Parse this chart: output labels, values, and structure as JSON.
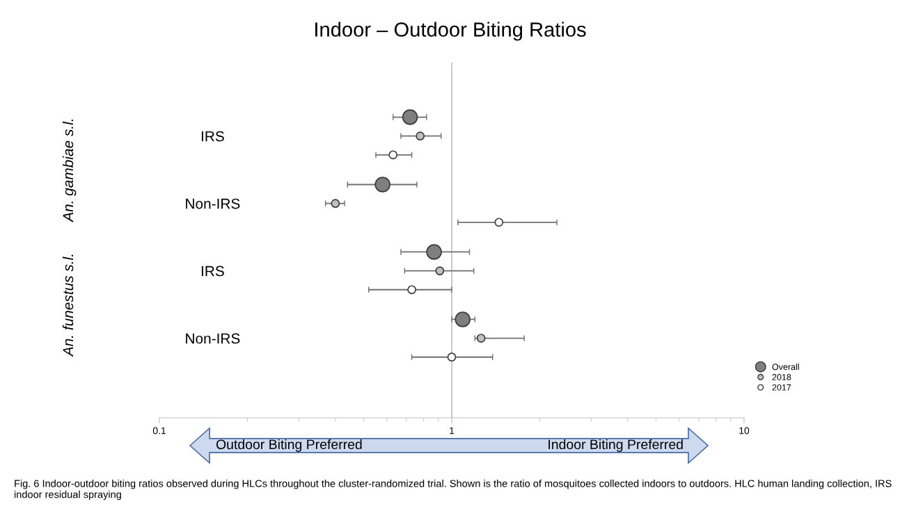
{
  "chart_data": {
    "type": "scatter",
    "orientation": "horizontal",
    "title": "Indoor – Outdoor Biting Ratios",
    "categories": [
      "IRS",
      "Non-IRS",
      "IRS",
      "Non-IRS"
    ],
    "series": [
      {
        "name": "Overall",
        "color": "#7f7f7f",
        "values": [
          0.72,
          0.58,
          0.87,
          1.09
        ],
        "errors": [
          [
            0.63,
            0.82
          ],
          [
            0.44,
            0.76
          ],
          [
            0.67,
            1.15
          ],
          [
            1.0,
            1.2
          ]
        ]
      },
      {
        "name": "2018",
        "color": "#bfbfbf",
        "values": [
          0.78,
          0.4,
          0.91,
          1.26
        ],
        "errors": [
          [
            0.67,
            0.92
          ],
          [
            0.37,
            0.43
          ],
          [
            0.69,
            1.19
          ],
          [
            1.2,
            1.77
          ]
        ]
      },
      {
        "name": "2017",
        "color": "#ffffff",
        "values": [
          0.63,
          1.45,
          0.73,
          1.0
        ],
        "errors": [
          [
            0.55,
            0.73
          ],
          [
            1.05,
            2.29
          ],
          [
            0.52,
            1.0
          ],
          [
            0.73,
            1.38
          ]
        ]
      }
    ],
    "log": "x",
    "xlim": [
      0.1,
      10
    ],
    "xticks": [
      0.1,
      1,
      10
    ],
    "marker": "circle",
    "legend": "bottom right",
    "ref_lines": [
      {
        "axis": "x",
        "value": 1,
        "color": "#bfbfbf"
      }
    ],
    "annotations": [
      "An. gambiae s.l.",
      "An. funestus s.l.",
      "Outdoor Biting Preferred",
      "Indoor Biting Preferred",
      "Fig. 6 Indoor-outdoor biting ratios observed during HLCs throughout the cluster-randomized trial. Shown is the ratio of mosquitoes collected indoors to outdoors. HLC human landing collection, IRS indoor residual spraying"
    ]
  }
}
